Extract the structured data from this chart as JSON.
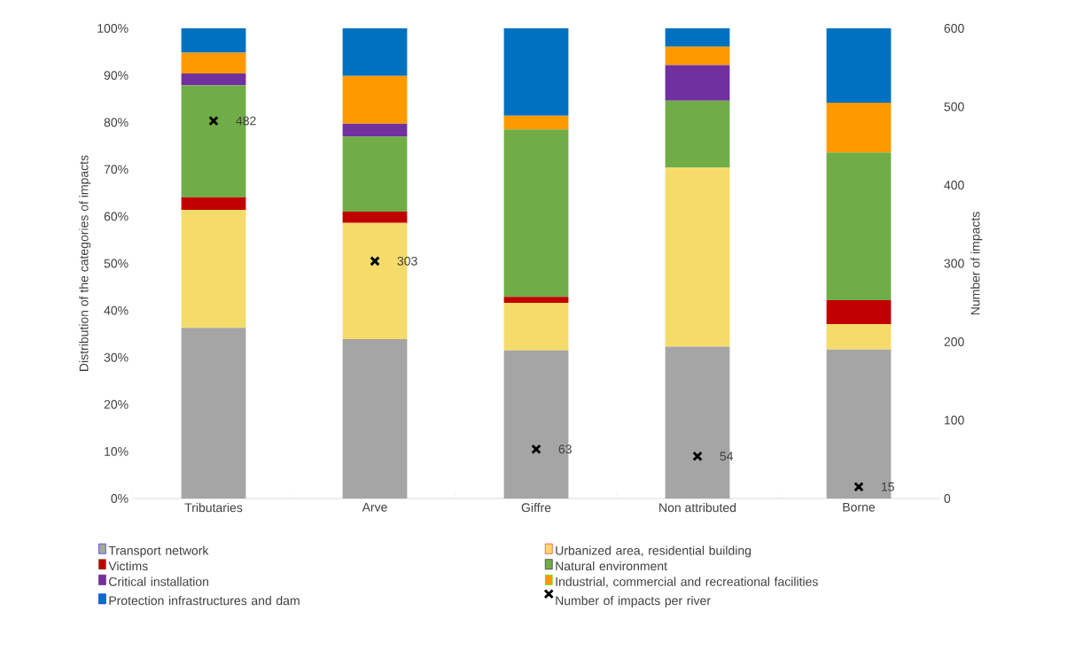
{
  "chart_data": {
    "type": "bar",
    "stacked": true,
    "ylabel": "Distribution of the categories of impacts",
    "y2label": "Number of impacts",
    "categories": [
      "Tributaries",
      "Arve",
      "Giffre",
      "Non attributed",
      "Borne"
    ],
    "series": [
      {
        "name": "Transport network",
        "color": "#a5a5a5",
        "values": [
          36.3,
          33.9,
          31.5,
          32.3,
          31.7
        ]
      },
      {
        "name": "Urbanized area, residential building",
        "color": "#f5dc6a",
        "values": [
          25.1,
          24.7,
          10.1,
          38.1,
          5.4
        ]
      },
      {
        "name": "Victims",
        "color": "#c00000",
        "values": [
          2.7,
          2.4,
          1.3,
          0,
          5.1
        ]
      },
      {
        "name": "Natural environment",
        "color": "#70ad47",
        "values": [
          23.8,
          16.0,
          35.6,
          14.2,
          31.4
        ]
      },
      {
        "name": "Critical installation",
        "color": "#7030a0",
        "values": [
          2.5,
          2.7,
          0,
          7.6,
          0
        ]
      },
      {
        "name": "Industrial, commercial and recreational facilities",
        "color": "#ff9900",
        "values": [
          4.4,
          10.2,
          2.9,
          3.9,
          10.6
        ]
      },
      {
        "name": "Protection infrastructures and dam",
        "color": "#0070c0",
        "values": [
          5.2,
          10.1,
          18.6,
          3.9,
          15.8
        ]
      },
      {
        "name": "Number of impacts per river",
        "type": "scatter",
        "axis": "y2",
        "color": "#000000",
        "values": [
          482,
          303,
          63,
          54,
          15
        ],
        "value_labels": [
          "482",
          "303",
          "63",
          "54",
          "15"
        ]
      }
    ],
    "marker": "cross",
    "legend": "bottom",
    "grid": false,
    "ylim": [
      0,
      100
    ],
    "yticks": [
      {
        "value": 0,
        "label": "0%"
      },
      {
        "value": 10,
        "label": "10%"
      },
      {
        "value": 20,
        "label": "20%"
      },
      {
        "value": 30,
        "label": "30%"
      },
      {
        "value": 40,
        "label": "40%"
      },
      {
        "value": 50,
        "label": "50%"
      },
      {
        "value": 60,
        "label": "60%"
      },
      {
        "value": 70,
        "label": "70%"
      },
      {
        "value": 80,
        "label": "80%"
      },
      {
        "value": 90,
        "label": "90%"
      },
      {
        "value": 100,
        "label": "100%"
      }
    ],
    "y2lim": [
      0,
      600
    ],
    "y2ticks": [
      0,
      100,
      200,
      300,
      400,
      500,
      600
    ]
  }
}
